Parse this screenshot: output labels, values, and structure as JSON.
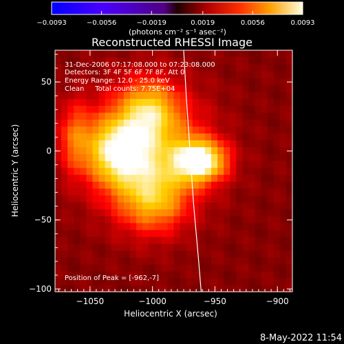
{
  "chart_data": {
    "type": "heatmap",
    "title": "Reconstructed RHESSI Image",
    "xlabel": "Heliocentric X (arcsec)",
    "ylabel": "Heliocentric Y (arcsec)",
    "xlim": [
      -1078,
      -888
    ],
    "ylim": [
      -102,
      73
    ],
    "x_ticks": [
      {
        "value": -1050,
        "label": "−1050"
      },
      {
        "value": -1000,
        "label": "−1000"
      },
      {
        "value": -950,
        "label": "−950"
      },
      {
        "value": -900,
        "label": "−900"
      }
    ],
    "y_ticks": [
      {
        "value": 50,
        "label": "50"
      },
      {
        "value": 0,
        "label": "0"
      },
      {
        "value": -50,
        "label": "−50"
      },
      {
        "value": -100,
        "label": "−100"
      }
    ],
    "colorbar": {
      "range": [
        -0.0093,
        0.0093
      ],
      "ticks": [
        {
          "value": -0.0093,
          "label": "−0.0093"
        },
        {
          "value": -0.0056,
          "label": "−0.0056"
        },
        {
          "value": -0.0019,
          "label": "−0.0019"
        },
        {
          "value": 0.0019,
          "label": "0.0019"
        },
        {
          "value": 0.0056,
          "label": "0.0056"
        },
        {
          "value": 0.0093,
          "label": "0.0093"
        }
      ],
      "units_label": "(photons cm⁻² s⁻¹ asec⁻²)"
    },
    "annotations": [
      "31-Dec-2006 07:17:08.000 to 07:23:08.000",
      "Detectors: 3F 4F 5F 6F 7F 8F, Att 0",
      "Energy Range: 12.0 - 25.0 keV",
      "Clean     Total counts: 7.75E+04"
    ],
    "peak_label": "Position of Peak = [-962,-7]",
    "peak_position": [
      -962,
      -7
    ],
    "limb_curve": [
      [
        -975,
        73
      ],
      [
        -973,
        40
      ],
      [
        -970,
        0
      ],
      [
        -967,
        -40
      ],
      [
        -963,
        -80
      ],
      [
        -961,
        -102
      ]
    ],
    "sources": [
      {
        "x": -962,
        "y": -7,
        "sx": 14,
        "sy": 10,
        "amp": 0.0093
      },
      {
        "x": -1028,
        "y": 0,
        "sx": 16,
        "sy": 16,
        "amp": 0.0065
      },
      {
        "x": -1003,
        "y": 0,
        "sx": 30,
        "sy": 30,
        "amp": 0.0058
      },
      {
        "x": -1003,
        "y": 30,
        "sx": 15,
        "sy": 14,
        "amp": 0.0045
      },
      {
        "x": -1000,
        "y": -35,
        "sx": 18,
        "sy": 16,
        "amp": 0.0042
      },
      {
        "x": -1062,
        "y": 10,
        "sx": 10,
        "sy": 18,
        "amp": 0.0033
      }
    ],
    "background_level": 0.0002,
    "colormap": [
      "#0000ff",
      "#4000ff",
      "#7000e0",
      "#000000",
      "#7a0000",
      "#ff0000",
      "#ff8000",
      "#ffd000",
      "#ffffff"
    ]
  },
  "footer": {
    "timestamp": "8-May-2022 11:54"
  }
}
